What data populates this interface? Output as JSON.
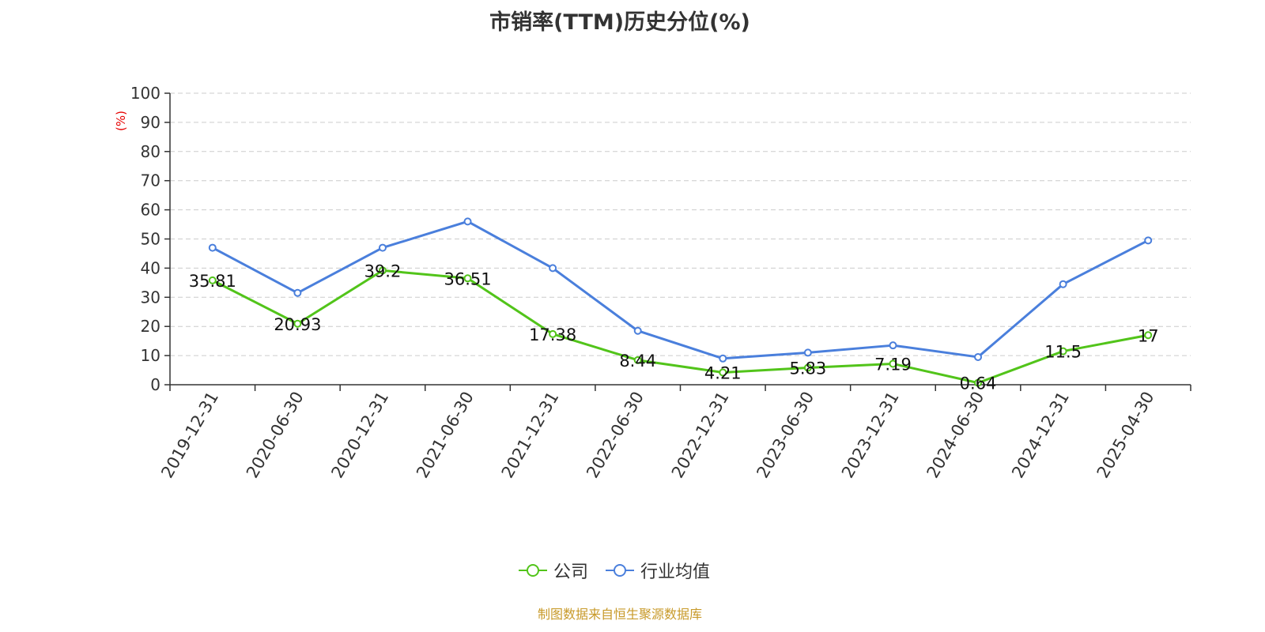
{
  "chart_data": {
    "type": "line",
    "title": "市销率(TTM)历史分位(%)",
    "ylabel": "(%)",
    "ylim": [
      0,
      100
    ],
    "yticks": [
      0,
      10,
      20,
      30,
      40,
      50,
      60,
      70,
      80,
      90,
      100
    ],
    "grid": true,
    "legend_position": "bottom",
    "categories": [
      "2019-12-31",
      "2020-06-30",
      "2020-12-31",
      "2021-06-30",
      "2021-12-31",
      "2022-06-30",
      "2022-12-31",
      "2023-06-30",
      "2023-12-31",
      "2024-06-30",
      "2024-12-31",
      "2025-04-30"
    ],
    "series": [
      {
        "name": "公司",
        "color": "#52c41a",
        "values": [
          35.81,
          20.93,
          39.2,
          36.51,
          17.38,
          8.44,
          4.21,
          5.83,
          7.19,
          0.64,
          11.5,
          17
        ],
        "labels": [
          "35.81",
          "20.93",
          "39.2",
          "36.51",
          "17.38",
          "8.44",
          "4.21",
          "5.83",
          "7.19",
          "0.64",
          "11.5",
          "17"
        ]
      },
      {
        "name": "行业均值",
        "color": "#4a7fdc",
        "values": [
          47,
          31.5,
          47,
          56,
          40,
          18.5,
          9,
          11,
          13.5,
          9.5,
          34.5,
          49.5
        ]
      }
    ]
  },
  "footer": {
    "source": "制图数据来自恒生聚源数据库"
  }
}
